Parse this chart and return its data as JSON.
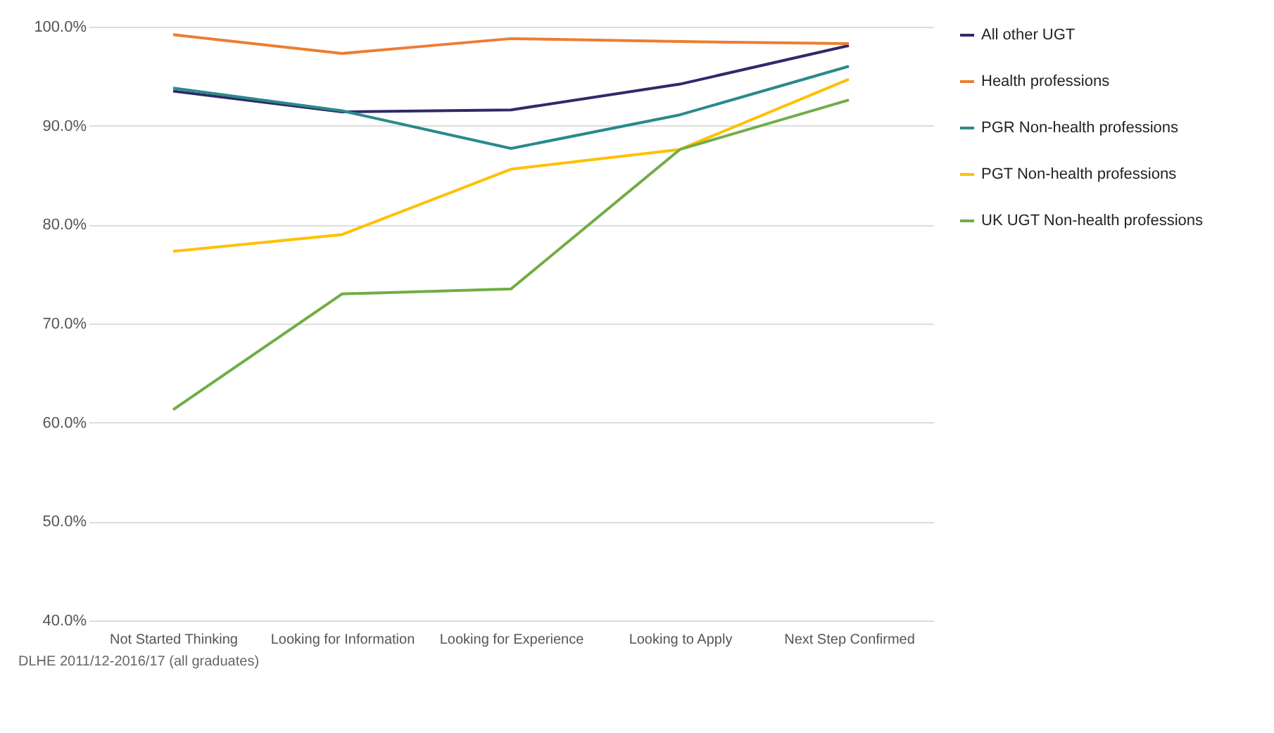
{
  "chart_data": {
    "type": "line",
    "categories": [
      "Not Started Thinking",
      "Looking for Information",
      "Looking for Experience",
      "Looking to Apply",
      "Next Step Confirmed"
    ],
    "series": [
      {
        "name": "All other UGT",
        "color": "#2e2a6b",
        "values": [
          93.5,
          91.4,
          91.6,
          94.2,
          98.1
        ]
      },
      {
        "name": "Health professions",
        "color": "#ed7d31",
        "values": [
          99.2,
          97.3,
          98.8,
          98.5,
          98.3
        ]
      },
      {
        "name": "PGR Non-health professions",
        "color": "#2a8a8a",
        "values": [
          93.8,
          91.5,
          87.7,
          91.1,
          96.0
        ]
      },
      {
        "name": "PGT Non-health professions",
        "color": "#ffc000",
        "values": [
          77.3,
          79.0,
          85.6,
          87.6,
          94.7
        ]
      },
      {
        "name": "UK UGT Non-health professions",
        "color": "#70ad47",
        "values": [
          61.3,
          73.0,
          73.5,
          87.6,
          92.6
        ]
      }
    ],
    "ylim": [
      40,
      100
    ],
    "yticks": [
      {
        "value": 40,
        "label": "40.0%"
      },
      {
        "value": 50,
        "label": "50.0%"
      },
      {
        "value": 60,
        "label": "60.0%"
      },
      {
        "value": 70,
        "label": "70.0%"
      },
      {
        "value": 80,
        "label": "80.0%"
      },
      {
        "value": 90,
        "label": "90.0%"
      },
      {
        "value": 100,
        "label": "100.0%"
      }
    ],
    "grid": "y",
    "legend": "right",
    "line_style": "solid",
    "annotations": [
      "DLHE 2011/12-2016/17 (all graduates)"
    ]
  }
}
